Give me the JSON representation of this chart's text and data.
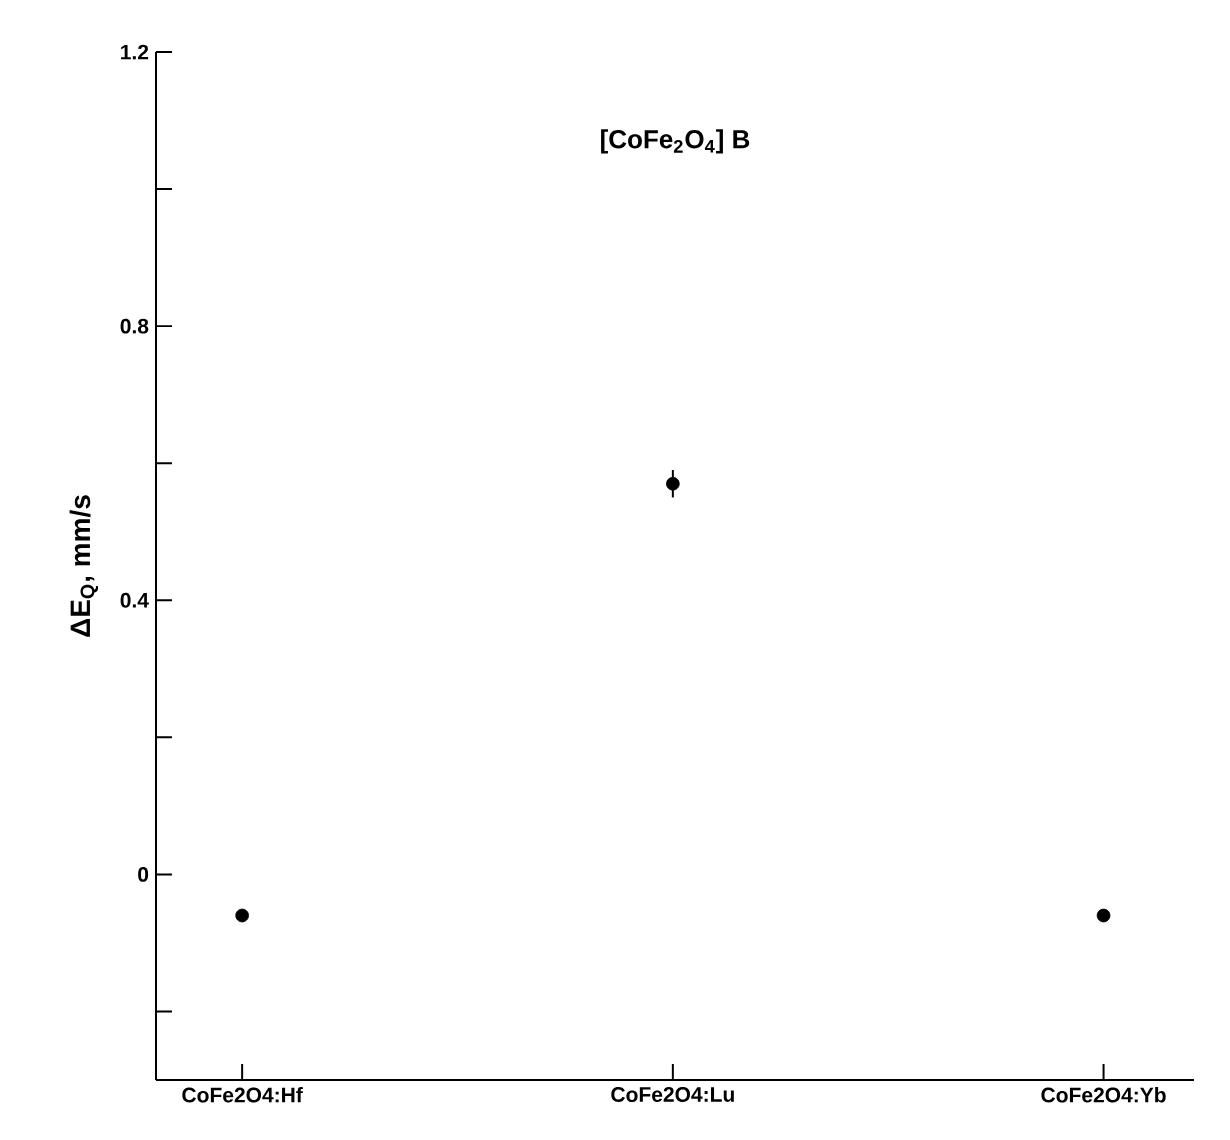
{
  "chart_data": {
    "type": "scatter",
    "title": "[CoFe$_{2}$O$_{4}$] B",
    "ylabel": "ΔE$_{Q}$, mm/s",
    "categories": [
      "CoFe2O4:Hf",
      "CoFe2O4:Lu",
      "CoFe2O4:Yb"
    ],
    "values": [
      -0.06,
      0.57,
      -0.06
    ],
    "errors": [
      null,
      0.02,
      null
    ],
    "color": "#000000",
    "ylim": [
      -0.3,
      1.2
    ],
    "yticks": [
      {
        "value": -0.2,
        "label": null
      },
      0,
      {
        "value": 0.2,
        "label": null
      },
      0.4,
      {
        "value": 0.6,
        "label": null
      },
      0.8,
      {
        "value": 1.0,
        "label": null
      },
      1.2
    ],
    "grid": false
  }
}
